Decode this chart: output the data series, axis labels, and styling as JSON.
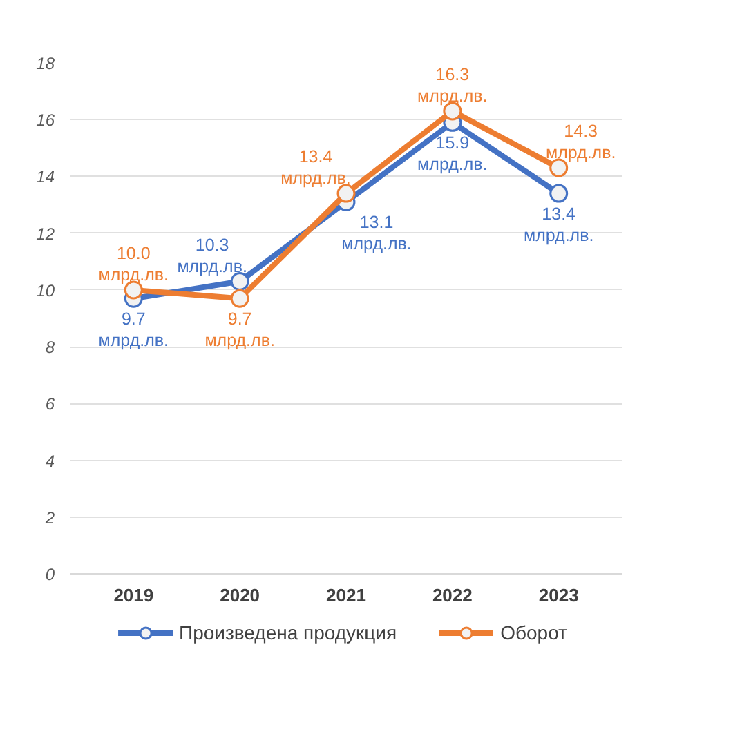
{
  "chart_data": {
    "type": "line",
    "categories": [
      "2019",
      "2020",
      "2021",
      "2022",
      "2023"
    ],
    "series": [
      {
        "name": "Произведена продукция",
        "color": "#4472c4",
        "values": [
          9.7,
          10.3,
          13.1,
          15.9,
          13.4
        ],
        "value_labels": [
          "9.7 млрд.лв.",
          "10.3 млрд.лв.",
          "13.1 млрд.лв.",
          "15.9 млрд.лв.",
          "13.4 млрд.лв."
        ]
      },
      {
        "name": "Оборот",
        "color": "#ed7d31",
        "values": [
          10.0,
          9.7,
          13.4,
          16.3,
          14.3
        ],
        "value_labels": [
          "10.0 млрд.лв.",
          "9.7 млрд.лв.",
          "13.4 млрд.лв.",
          "16.3 млрд.лв.",
          "14.3 млрд.лв."
        ]
      }
    ],
    "ylim": [
      0,
      18
    ],
    "yticks": [
      0,
      2,
      4,
      6,
      8,
      10,
      12,
      14,
      16,
      18
    ],
    "grid": "y",
    "legend": "bottom",
    "marker": "circle",
    "line_style": "solid"
  }
}
